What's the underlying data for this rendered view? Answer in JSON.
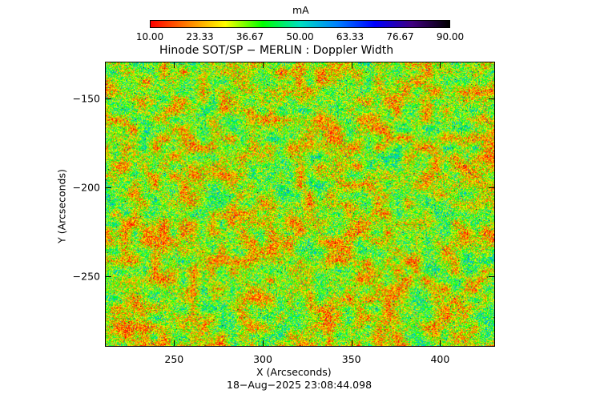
{
  "colorbar": {
    "unit": "mA",
    "ticks": [
      "10.00",
      "23.33",
      "36.67",
      "50.00",
      "63.33",
      "76.67",
      "90.00"
    ],
    "range": [
      10,
      90
    ],
    "colors": [
      "#ff0000",
      "#ff8000",
      "#ffff00",
      "#00ff00",
      "#00e0c0",
      "#0080ff",
      "#0000ff",
      "#400080",
      "#000000"
    ]
  },
  "chart_data": {
    "type": "heatmap",
    "title": "Hinode SOT/SP − MERLIN : Doppler Width",
    "xlabel": "X (Arcseconds)",
    "ylabel": "Y (Arcseconds)",
    "xlim": [
      211,
      431
    ],
    "ylim": [
      -290,
      -129
    ],
    "x_ticks": [
      250,
      300,
      350,
      400
    ],
    "y_ticks": [
      -150,
      -200,
      -250
    ],
    "x_tick_labels": [
      "250",
      "300",
      "350",
      "400"
    ],
    "y_tick_labels": [
      "−150",
      "−200",
      "−250"
    ],
    "value_unit": "mA",
    "value_range": [
      10,
      90
    ],
    "typical_value_range": [
      18,
      50
    ],
    "timestamp": "18−Aug−2025 23:08:44.098"
  }
}
